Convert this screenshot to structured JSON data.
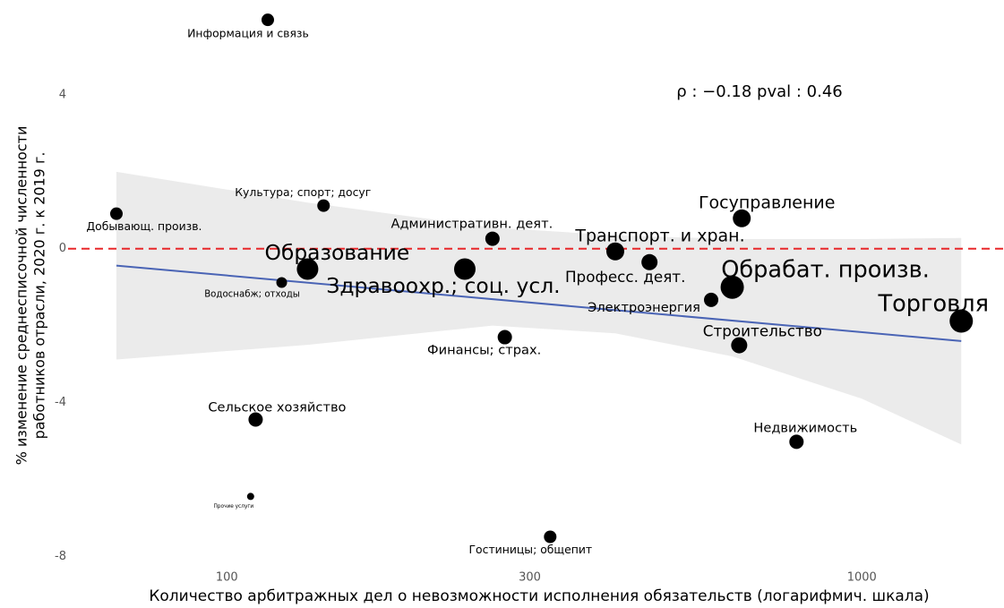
{
  "chart_data": {
    "type": "scatter",
    "annotation": "ρ : −0.18 pval : 0.46",
    "xlabel": "Количество арбитражных дел о невозможности исполнения обязательств (логарифмич. шкала)",
    "ylabel": [
      "% изменение среднесписочной численности",
      "работников отрасли, 2020 г. к 2019 г."
    ],
    "xlog": true,
    "xlim": [
      60,
      1600
    ],
    "ylim": [
      -8.2,
      6.0
    ],
    "xticks": [
      100,
      300,
      1000
    ],
    "yticks": [
      -8,
      -4,
      0,
      4
    ],
    "grid": false,
    "color": "#000000",
    "labels": [
      "Информация и связь",
      "Добывающ. произв.",
      "Культура; спорт; досуг",
      "Административн. деят.",
      "Госуправление",
      "Транспорт. и хран.",
      "Образование",
      "Здравоохр.; соц. усл.",
      "Професс. деят.",
      "Обрабат. произв.",
      "Водоснабж; отходы",
      "Электроэнергия",
      "Торговля",
      "Финансы; страх.",
      "Строительство",
      "Сельское хозяйство",
      "Недвижимость",
      "Прочие услуги",
      "Гостиницы; общепит"
    ],
    "x": [
      116,
      67,
      142,
      262,
      647,
      409,
      134,
      237,
      463,
      625,
      122,
      579,
      1434,
      274,
      641,
      111,
      789,
      109,
      323
    ],
    "values": [
      5.95,
      0.91,
      1.12,
      0.26,
      0.79,
      -0.07,
      -0.53,
      -0.53,
      -0.35,
      -1.0,
      -0.88,
      -1.33,
      -1.88,
      -2.3,
      -2.51,
      -4.44,
      -5.02,
      -6.44,
      -7.49
    ],
    "sizes": [
      49,
      49,
      49,
      64,
      100,
      100,
      144,
      144,
      81,
      169,
      36,
      64,
      169,
      64,
      81,
      64,
      64,
      16,
      49
    ],
    "hline": {
      "value": 0,
      "color": "#e8282b"
    },
    "trend": {
      "color": "#4a64b5",
      "x": [
        67,
        1434
      ],
      "values": [
        -0.44,
        -2.4
      ]
    },
    "band": {
      "color": "#ebebeb",
      "x": [
        67,
        134,
        262,
        409,
        625,
        1000,
        1434
      ],
      "upper": [
        2.0,
        1.2,
        0.55,
        0.35,
        0.25,
        0.25,
        0.28
      ],
      "lower": [
        -2.88,
        -2.5,
        -2.0,
        -2.2,
        -2.8,
        -3.9,
        -5.09
      ]
    }
  }
}
